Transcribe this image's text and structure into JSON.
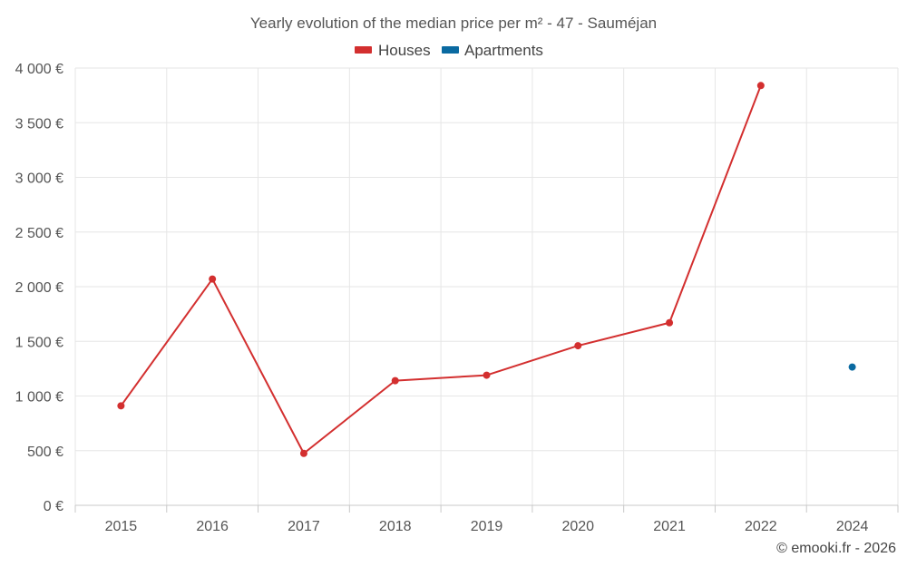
{
  "chart_data": {
    "type": "line",
    "title": "Yearly evolution of the median price per m² - 47 - Sauméjan",
    "categories": [
      "2015",
      "2016",
      "2017",
      "2018",
      "2019",
      "2020",
      "2021",
      "2022",
      "2024"
    ],
    "y_ticks": [
      0,
      500,
      1000,
      1500,
      2000,
      2500,
      3000,
      3500,
      4000
    ],
    "y_tick_labels": [
      "0 €",
      "500 €",
      "1 000 €",
      "1 500 €",
      "2 000 €",
      "2 500 €",
      "3 000 €",
      "3 500 €",
      "4 000 €"
    ],
    "ylim": [
      0,
      4000
    ],
    "grid": true,
    "legend_position": "top-center",
    "series": [
      {
        "name": "Houses",
        "color": "#d32f2f",
        "values": [
          910,
          2070,
          475,
          1140,
          1190,
          1460,
          1670,
          3840,
          null
        ]
      },
      {
        "name": "Apartments",
        "color": "#0a6aa1",
        "values": [
          null,
          null,
          null,
          null,
          null,
          null,
          null,
          null,
          1265
        ]
      }
    ]
  },
  "credit": "© emooki.fr - 2026"
}
